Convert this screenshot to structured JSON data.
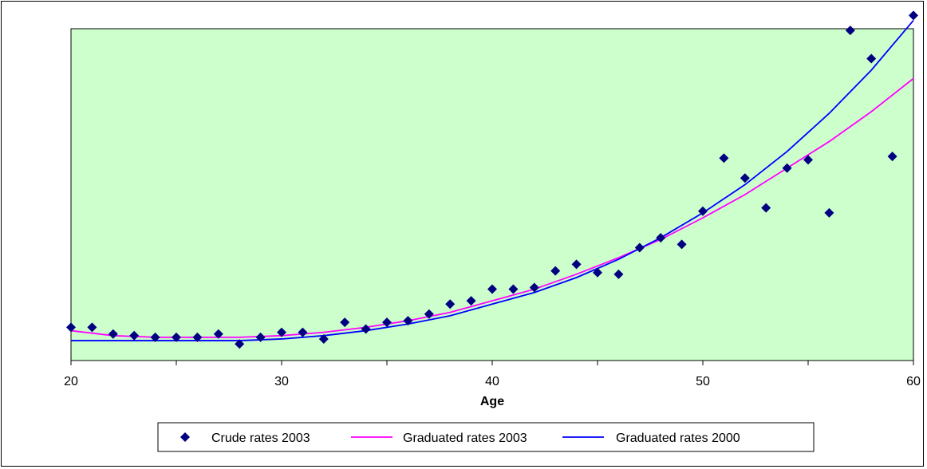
{
  "chart_data": {
    "type": "line",
    "title": "",
    "xlabel": "Age",
    "ylabel": "",
    "xlim": [
      20,
      60
    ],
    "ylim": [
      0,
      100
    ],
    "x_ticks": [
      20,
      30,
      40,
      50,
      60
    ],
    "grid": false,
    "background_color": "#ccffcc",
    "legend_position": "bottom",
    "series": [
      {
        "name": "Crude rates 2003",
        "kind": "scatter",
        "marker": "diamond",
        "color": "#000080",
        "x": [
          20,
          21,
          22,
          23,
          24,
          25,
          26,
          27,
          28,
          29,
          30,
          31,
          32,
          33,
          34,
          35,
          36,
          37,
          38,
          39,
          40,
          41,
          42,
          43,
          44,
          45,
          46,
          47,
          48,
          49,
          50,
          51,
          52,
          53,
          54,
          55,
          56,
          57,
          58,
          59,
          60
        ],
        "y": [
          10,
          10,
          8,
          7.5,
          7,
          7,
          7,
          8,
          5,
          7,
          8.5,
          8.5,
          6.5,
          11.5,
          9.5,
          11.5,
          12,
          14,
          17,
          18,
          21.5,
          21.5,
          22,
          27,
          29,
          26.5,
          26,
          34,
          37,
          35,
          45,
          61,
          55,
          46,
          58,
          60.5,
          44.5,
          99.5,
          91,
          61.5,
          104
        ]
      },
      {
        "name": "Graduated rates 2003",
        "kind": "line",
        "color": "#ff00ff",
        "x": [
          20,
          22,
          24,
          26,
          28,
          30,
          32,
          34,
          36,
          38,
          40,
          42,
          44,
          46,
          48,
          50,
          52,
          54,
          56,
          58,
          60
        ],
        "y": [
          9,
          7.5,
          7,
          7,
          7,
          7.5,
          8.5,
          10,
          12,
          14.5,
          18,
          21.5,
          26,
          31,
          36.5,
          43,
          50,
          58,
          66,
          75,
          85
        ]
      },
      {
        "name": "Graduated rates 2000",
        "kind": "line",
        "color": "#0000ff",
        "x": [
          20,
          22,
          24,
          26,
          28,
          30,
          32,
          34,
          36,
          38,
          40,
          42,
          44,
          46,
          48,
          50,
          52,
          54,
          56,
          58,
          60
        ],
        "y": [
          6,
          6,
          6,
          6,
          6,
          6.5,
          7.5,
          9,
          11,
          13.5,
          17,
          20.5,
          25,
          30.5,
          37,
          44.5,
          53,
          63,
          74.5,
          87.5,
          102.5
        ]
      }
    ]
  }
}
